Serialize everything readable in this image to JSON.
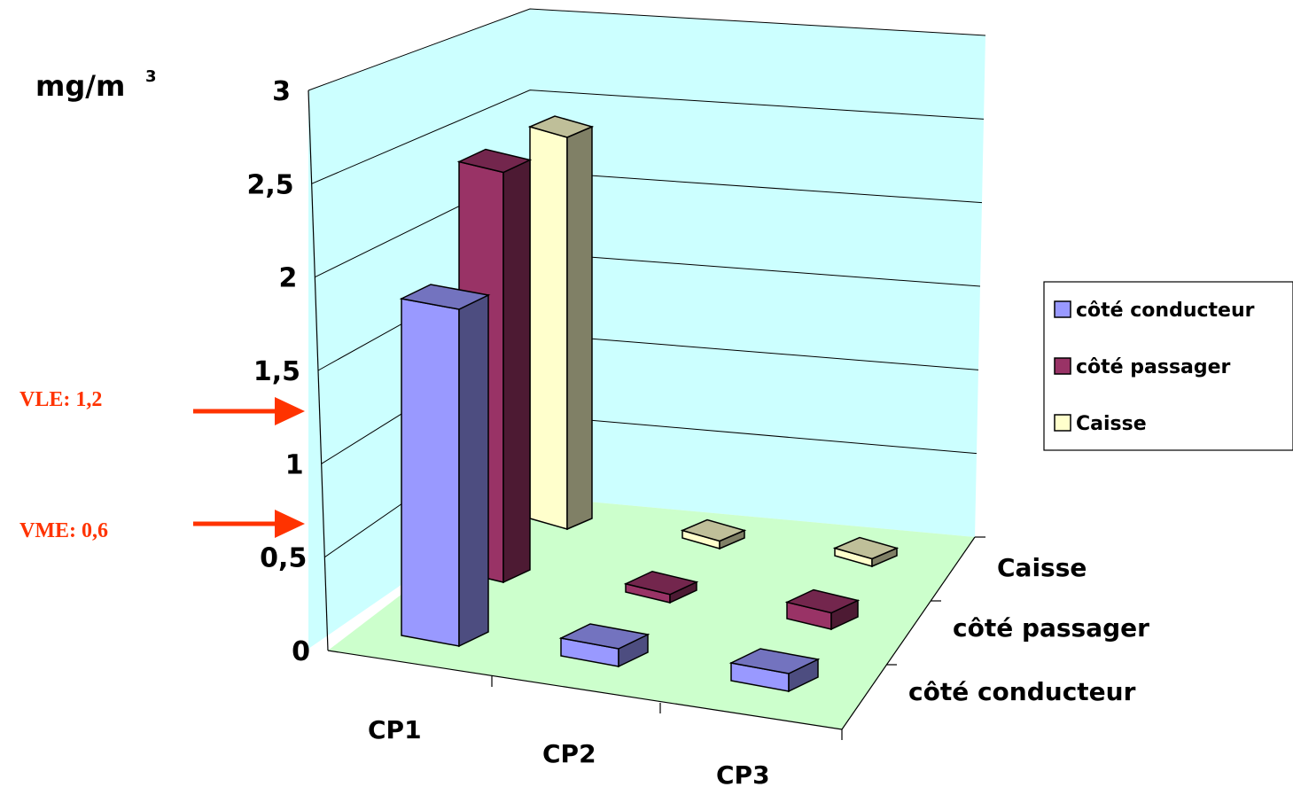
{
  "chart_data": {
    "type": "bar",
    "subtype": "3d-clustered",
    "unit_label": "mg/m",
    "unit_superscript": "3",
    "categories": [
      "CP1",
      "CP2",
      "CP3"
    ],
    "series": [
      {
        "name": "côté conducteur",
        "values": [
          1.9,
          0.1,
          0.1
        ],
        "color": "#9999ff"
      },
      {
        "name": "côté passager",
        "values": [
          2.5,
          0.05,
          0.1
        ],
        "color": "#993366"
      },
      {
        "name": "Caisse",
        "values": [
          2.6,
          0.05,
          0.05
        ],
        "color": "#ffffcc"
      }
    ],
    "yticks": [
      "0",
      "0,5",
      "1",
      "1,5",
      "2",
      "2,5",
      "3"
    ],
    "ylim": [
      0,
      3
    ],
    "grid": true,
    "legend_position": "right",
    "annotations": [
      {
        "label": "VLE: 1,2",
        "value": 1.2,
        "color": "#ff3300"
      },
      {
        "label": "VME: 0,6",
        "value": 0.6,
        "color": "#ff3300"
      }
    ],
    "colors": {
      "back_wall": "#ccffff",
      "floor": "#ccffcc",
      "arrow": "#ff3300"
    }
  }
}
